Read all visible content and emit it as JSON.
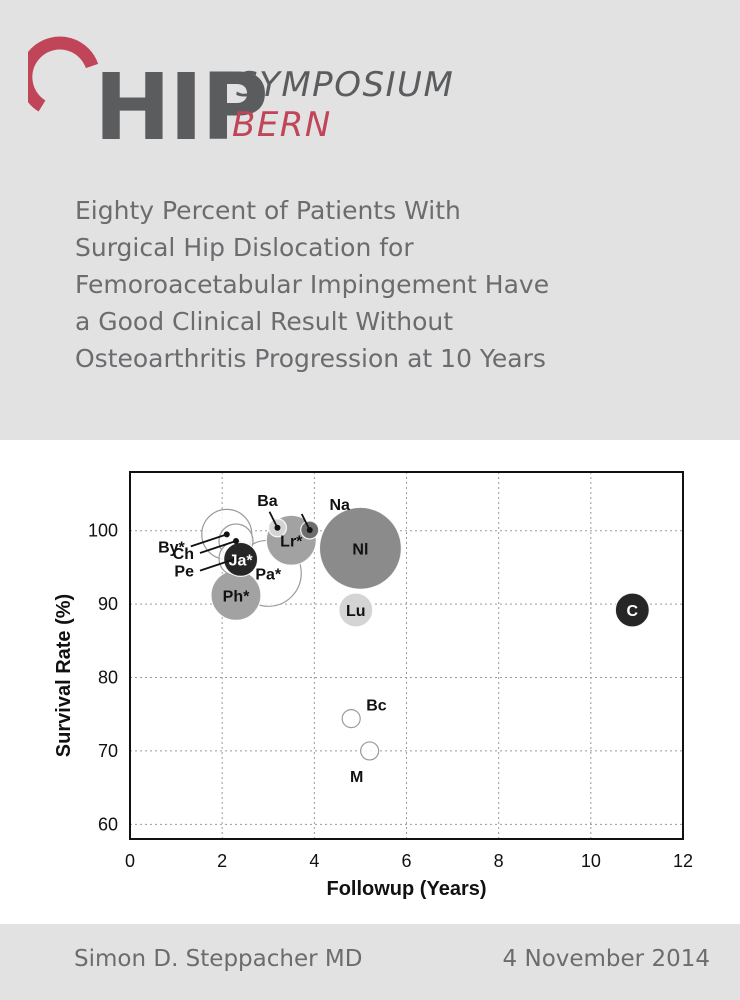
{
  "logo": {
    "mark": "HIP",
    "word1": "SYMPOSIUM",
    "word2": "BERN",
    "colors": {
      "gray": "#5b5c5e",
      "red": "#c14558"
    }
  },
  "title_lines": [
    "Eighty Percent of Patients With",
    "Surgical Hip Dislocation for",
    "Femoroacetabular Impingement Have",
    "a Good Clinical Result Without",
    "Osteoarthritis Progression at 10 Years"
  ],
  "footer": {
    "author": "Simon D. Steppacher MD",
    "date": "4 November 2014"
  },
  "chart_data": {
    "type": "scatter",
    "variant": "bubble",
    "xlabel": "Followup (Years)",
    "ylabel": "Survival Rate (%)",
    "xlim": [
      0,
      12
    ],
    "ylim": [
      58,
      108
    ],
    "xticks": [
      0,
      2,
      4,
      6,
      8,
      10,
      12
    ],
    "yticks": [
      60,
      70,
      80,
      90,
      100
    ],
    "grid": true,
    "grid_style": "dotted",
    "points": [
      {
        "label": "By*",
        "x": 2.1,
        "y": 99.5,
        "size": 3,
        "shade": "white",
        "label_pos": "leader-left"
      },
      {
        "label": "Ch",
        "x": 2.3,
        "y": 98.6,
        "size": 2,
        "shade": "white",
        "label_pos": "leader-left"
      },
      {
        "label": "Pe",
        "x": 2.3,
        "y": 96.2,
        "size": 2,
        "shade": "white",
        "label_pos": "leader-left"
      },
      {
        "label": "Pa*",
        "x": 3.0,
        "y": 94.2,
        "size": 4,
        "shade": "white",
        "label_pos": "inside"
      },
      {
        "label": "Ph*",
        "x": 2.3,
        "y": 91.2,
        "size": 3,
        "shade": "mid-gray",
        "label_pos": "inside"
      },
      {
        "label": "Ja*",
        "x": 2.4,
        "y": 96.1,
        "size": 2,
        "shade": "black",
        "label_pos": "inside"
      },
      {
        "label": "Ba",
        "x": 3.2,
        "y": 100.4,
        "size": 1,
        "shade": "light-gray",
        "label_pos": "leader-top"
      },
      {
        "label": "Lr*",
        "x": 3.5,
        "y": 98.7,
        "size": 3,
        "shade": "mid-gray",
        "label_pos": "inside"
      },
      {
        "label": "Na",
        "x": 3.9,
        "y": 100.1,
        "size": 1,
        "shade": "dark-gray",
        "label_pos": "leader-top"
      },
      {
        "label": "Nl",
        "x": 5.0,
        "y": 97.6,
        "size": 5,
        "shade": "gray",
        "label_pos": "inside"
      },
      {
        "label": "Lu",
        "x": 4.9,
        "y": 89.2,
        "size": 2,
        "shade": "light-gray",
        "label_pos": "inside"
      },
      {
        "label": "C",
        "x": 10.9,
        "y": 89.2,
        "size": 2,
        "shade": "black",
        "label_pos": "inside"
      },
      {
        "label": "Bc",
        "x": 4.8,
        "y": 74.4,
        "size": 1,
        "shade": "white",
        "label_pos": "right"
      },
      {
        "label": "M",
        "x": 5.2,
        "y": 70.0,
        "size": 1,
        "shade": "white",
        "label_pos": "below-left"
      }
    ]
  }
}
